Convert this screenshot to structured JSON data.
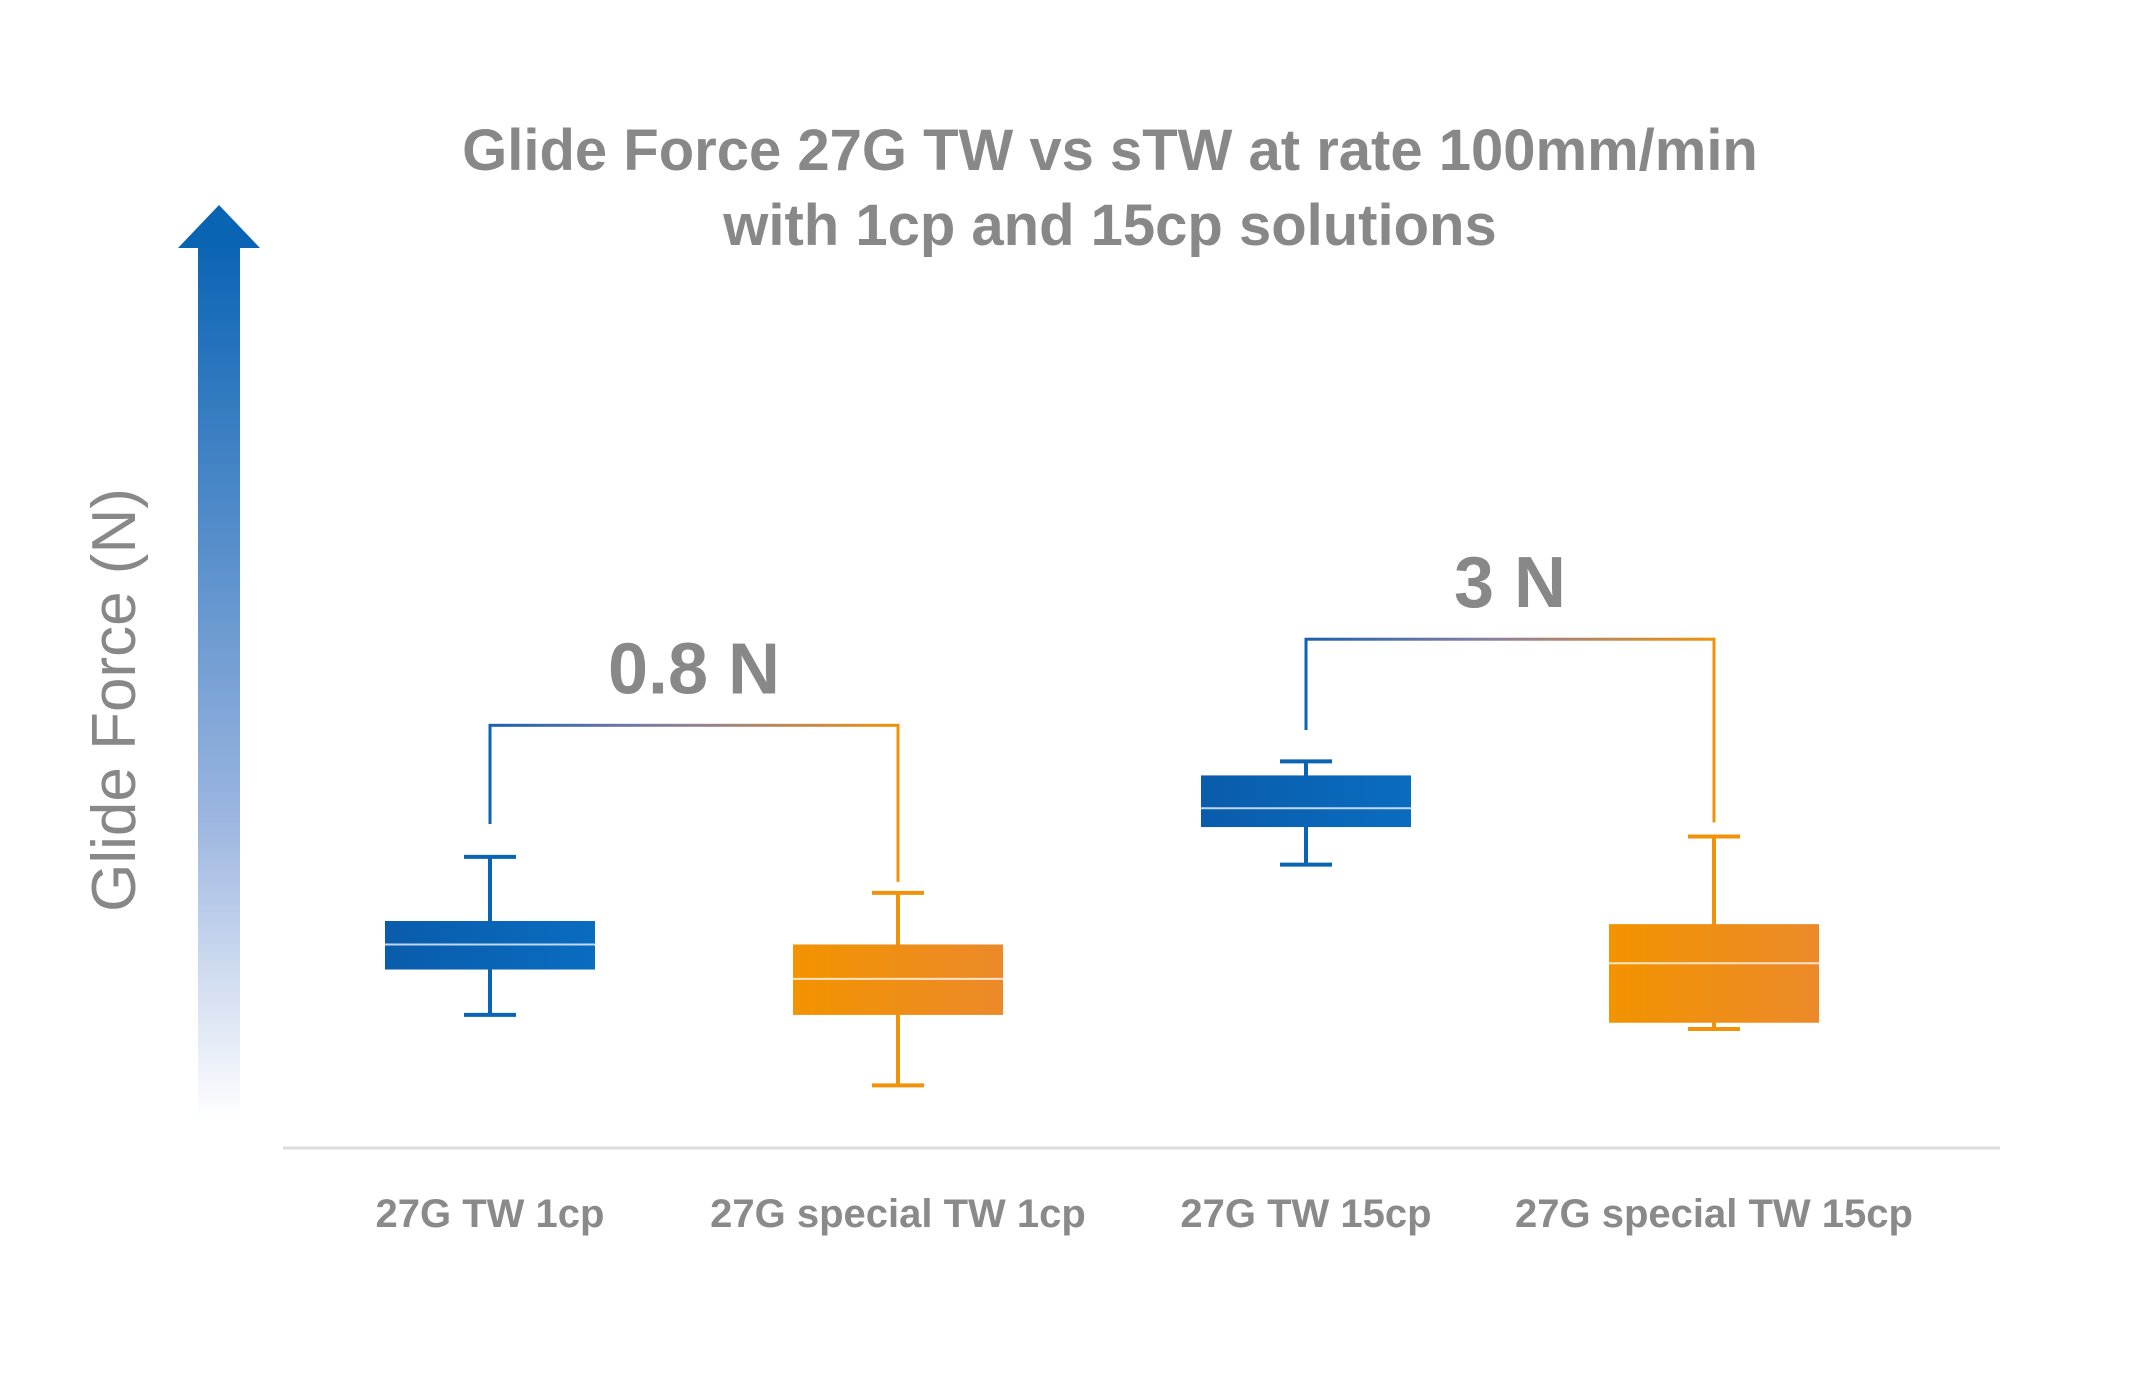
{
  "chart_data": {
    "type": "boxplot",
    "title": "Glide Force 27G TW vs sTW at rate 100mm/min",
    "subtitle": "with 1cp and 15cp solutions",
    "ylabel": "Glide Force (N)",
    "xlabel": "",
    "categories": [
      "27G TW 1cp",
      "27G special TW 1cp",
      "27G TW 15cp",
      "27G special TW 15cp"
    ],
    "ylim": [
      0,
      5.8
    ],
    "boxes": [
      {
        "category": "27G TW 1cp",
        "whisker_low": 0.85,
        "q1": 1.14,
        "median": 1.3,
        "q3": 1.45,
        "whisker_high": 1.86,
        "color": "#0a64b4"
      },
      {
        "category": "27G special TW 1cp",
        "whisker_low": 0.4,
        "q1": 0.85,
        "median": 1.08,
        "q3": 1.3,
        "whisker_high": 1.63,
        "color": "#f0920a"
      },
      {
        "category": "27G TW 15cp",
        "whisker_low": 1.81,
        "q1": 2.05,
        "median": 2.17,
        "q3": 2.38,
        "whisker_high": 2.47,
        "color": "#0a64b4"
      },
      {
        "category": "27G special TW 15cp",
        "whisker_low": 0.76,
        "q1": 0.8,
        "median": 1.18,
        "q3": 1.43,
        "whisker_high": 1.99,
        "color": "#f0920a"
      }
    ],
    "annotations": [
      {
        "text": "0.8 N",
        "from": "27G TW 1cp",
        "to": "27G special TW 1cp",
        "bracket_level": 2.7,
        "left_leg_bottom": 2.07,
        "right_leg_bottom": 1.7
      },
      {
        "text": "3 N",
        "from": "27G TW 15cp",
        "to": "27G special TW 15cp",
        "bracket_level": 3.25,
        "left_leg_bottom": 2.67,
        "right_leg_bottom": 2.08
      }
    ],
    "grid": false,
    "legend": "none",
    "colors": {
      "blue": "#0a64b4",
      "orange": "#f0920a",
      "text": "#888888",
      "axis": "#d9d9d9"
    }
  }
}
